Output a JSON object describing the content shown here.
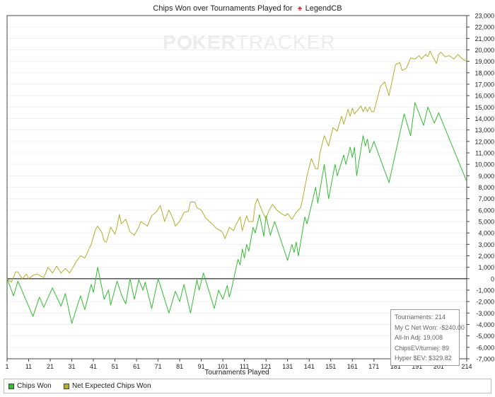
{
  "title": {
    "prefix": "Chips Won over Tournaments Played for",
    "player": "LegendCB"
  },
  "watermark": {
    "part1": "P",
    "part2": "KER",
    "part3": "TRACKER"
  },
  "stats_box": {
    "tournaments": "Tournaments: 214",
    "net_won": "My C Net Won: -$240.00",
    "allin_adj": "All-In Adj: 19,008",
    "chips_ev": "ChipsEV/turniej: 89",
    "hyper_sev": "Hyper $EV: $329.82"
  },
  "legend": {
    "chips_won": "Chips Won",
    "net_expected": "Net Expected Chips Won"
  },
  "colors": {
    "chips_won": "#33bb33",
    "net_expected": "#b3ae2e",
    "zero_line": "#000000",
    "grid": "#f0f0f0",
    "axis": "#444444"
  },
  "chart_data": {
    "type": "line",
    "title": "Chips Won over Tournaments Played for LegendCB",
    "xlabel": "Tournaments Played",
    "ylabel": "",
    "xlim": [
      1,
      214
    ],
    "ylim": [
      -7000,
      23000
    ],
    "x_ticks": [
      1,
      11,
      21,
      31,
      41,
      51,
      61,
      71,
      81,
      91,
      101,
      111,
      121,
      131,
      141,
      151,
      161,
      171,
      181,
      191,
      201,
      214
    ],
    "y_ticks": [
      -7000,
      -6000,
      -5000,
      -4000,
      -3000,
      -2000,
      -1000,
      0,
      1000,
      2000,
      3000,
      4000,
      5000,
      6000,
      7000,
      8000,
      9000,
      10000,
      11000,
      12000,
      13000,
      14000,
      15000,
      16000,
      17000,
      18000,
      19000,
      20000,
      21000,
      22000,
      23000
    ],
    "legend_position": "bottom",
    "series": [
      {
        "name": "Chips Won",
        "points": [
          [
            1,
            0
          ],
          [
            4,
            -1500
          ],
          [
            6,
            -200
          ],
          [
            13,
            -3300
          ],
          [
            16,
            -1600
          ],
          [
            18,
            -2500
          ],
          [
            22,
            -800
          ],
          [
            26,
            -2400
          ],
          [
            28,
            -1300
          ],
          [
            31,
            -3900
          ],
          [
            35,
            -1500
          ],
          [
            37,
            -2700
          ],
          [
            40,
            -500
          ],
          [
            41,
            -1200
          ],
          [
            43,
            1000
          ],
          [
            46,
            -1800
          ],
          [
            48,
            -1000
          ],
          [
            49,
            -2300
          ],
          [
            52,
            -200
          ],
          [
            54,
            -1400
          ],
          [
            56,
            -2200
          ],
          [
            58,
            0
          ],
          [
            60,
            -1800
          ],
          [
            62,
            -100
          ],
          [
            64,
            -1000
          ],
          [
            65,
            -300
          ],
          [
            68,
            -2600
          ],
          [
            71,
            0
          ],
          [
            76,
            -3000
          ],
          [
            79,
            -1100
          ],
          [
            81,
            -2000
          ],
          [
            83,
            -500
          ],
          [
            86,
            -3000
          ],
          [
            89,
            -100
          ],
          [
            90,
            -1000
          ],
          [
            92,
            500
          ],
          [
            97,
            -2600
          ],
          [
            99,
            -1000
          ],
          [
            101,
            -1800
          ],
          [
            103,
            -600
          ],
          [
            104,
            -1600
          ],
          [
            105,
            -900
          ],
          [
            108,
            1700
          ],
          [
            109,
            1200
          ],
          [
            110,
            2600
          ],
          [
            111,
            1800
          ],
          [
            112,
            3000
          ],
          [
            113,
            2400
          ],
          [
            115,
            4500
          ],
          [
            116,
            4000
          ],
          [
            118,
            5600
          ],
          [
            120,
            3700
          ],
          [
            121,
            5500
          ],
          [
            123,
            3800
          ],
          [
            125,
            5000
          ],
          [
            131,
            1600
          ],
          [
            133,
            3000
          ],
          [
            134,
            2300
          ],
          [
            135,
            3200
          ],
          [
            136,
            2000
          ],
          [
            139,
            5400
          ],
          [
            140,
            4800
          ],
          [
            144,
            8000
          ],
          [
            145,
            6600
          ],
          [
            148,
            10000
          ],
          [
            150,
            7000
          ],
          [
            153,
            10000
          ],
          [
            154,
            9000
          ],
          [
            157,
            10800
          ],
          [
            158,
            10000
          ],
          [
            160,
            11500
          ],
          [
            161,
            10600
          ],
          [
            162,
            11500
          ],
          [
            163,
            9000
          ],
          [
            166,
            12500
          ],
          [
            167,
            11600
          ],
          [
            168,
            12200
          ],
          [
            169,
            11000
          ],
          [
            171,
            12000
          ],
          [
            178,
            8400
          ],
          [
            185,
            14400
          ],
          [
            188,
            12500
          ],
          [
            190,
            15400
          ],
          [
            194,
            13400
          ],
          [
            196,
            15000
          ],
          [
            199,
            13600
          ],
          [
            201,
            14500
          ],
          [
            214,
            8500
          ]
        ]
      },
      {
        "name": "Net Expected Chips Won",
        "points": [
          [
            1,
            0
          ],
          [
            3,
            -300
          ],
          [
            5,
            600
          ],
          [
            6,
            600
          ],
          [
            8,
            0
          ],
          [
            10,
            400
          ],
          [
            11,
            0
          ],
          [
            13,
            300
          ],
          [
            15,
            400
          ],
          [
            18,
            100
          ],
          [
            20,
            1000
          ],
          [
            22,
            500
          ],
          [
            24,
            1100
          ],
          [
            26,
            500
          ],
          [
            28,
            900
          ],
          [
            30,
            500
          ],
          [
            31,
            800
          ],
          [
            33,
            1500
          ],
          [
            35,
            2000
          ],
          [
            37,
            1800
          ],
          [
            39,
            2600
          ],
          [
            40,
            3000
          ],
          [
            42,
            4300
          ],
          [
            43,
            4600
          ],
          [
            45,
            4000
          ],
          [
            46,
            3300
          ],
          [
            47,
            3200
          ],
          [
            49,
            4500
          ],
          [
            51,
            3900
          ],
          [
            52,
            4600
          ],
          [
            53,
            5600
          ],
          [
            54,
            4800
          ],
          [
            56,
            5200
          ],
          [
            58,
            4100
          ],
          [
            60,
            3800
          ],
          [
            62,
            4500
          ],
          [
            63,
            5000
          ],
          [
            66,
            4600
          ],
          [
            68,
            5500
          ],
          [
            70,
            5800
          ],
          [
            72,
            6400
          ],
          [
            74,
            5000
          ],
          [
            76,
            6000
          ],
          [
            78,
            5200
          ],
          [
            79,
            4600
          ],
          [
            81,
            5000
          ],
          [
            83,
            5800
          ],
          [
            85,
            5900
          ],
          [
            86,
            6700
          ],
          [
            88,
            6700
          ],
          [
            89,
            6200
          ],
          [
            91,
            6000
          ],
          [
            93,
            5300
          ],
          [
            96,
            4800
          ],
          [
            98,
            4400
          ],
          [
            100,
            4200
          ],
          [
            101,
            4000
          ],
          [
            102,
            3500
          ],
          [
            104,
            4500
          ],
          [
            106,
            4200
          ],
          [
            107,
            4700
          ],
          [
            109,
            5400
          ],
          [
            110,
            4200
          ],
          [
            112,
            5500
          ],
          [
            113,
            5000
          ],
          [
            115,
            5000
          ],
          [
            116,
            6500
          ],
          [
            117,
            7000
          ],
          [
            119,
            6000
          ],
          [
            121,
            5200
          ],
          [
            122,
            5800
          ],
          [
            124,
            6500
          ],
          [
            126,
            6000
          ],
          [
            128,
            5700
          ],
          [
            130,
            5500
          ],
          [
            131,
            5700
          ],
          [
            133,
            5200
          ],
          [
            135,
            5800
          ],
          [
            137,
            6200
          ],
          [
            138,
            7000
          ],
          [
            140,
            9000
          ],
          [
            142,
            10500
          ],
          [
            144,
            9600
          ],
          [
            145,
            9600
          ],
          [
            146,
            11000
          ],
          [
            148,
            12500
          ],
          [
            150,
            11600
          ],
          [
            152,
            13200
          ],
          [
            154,
            12900
          ],
          [
            156,
            14200
          ],
          [
            157,
            13500
          ],
          [
            159,
            14800
          ],
          [
            160,
            14200
          ],
          [
            161,
            14900
          ],
          [
            162,
            14400
          ],
          [
            165,
            15100
          ],
          [
            166,
            14600
          ],
          [
            167,
            15000
          ],
          [
            168,
            14600
          ],
          [
            169,
            15000
          ],
          [
            170,
            14600
          ],
          [
            171,
            14600
          ],
          [
            174,
            16800
          ],
          [
            176,
            17200
          ],
          [
            178,
            16000
          ],
          [
            181,
            18700
          ],
          [
            183,
            18900
          ],
          [
            184,
            18200
          ],
          [
            186,
            18400
          ],
          [
            188,
            19300
          ],
          [
            190,
            19200
          ],
          [
            192,
            19500
          ],
          [
            193,
            19200
          ],
          [
            195,
            19600
          ],
          [
            196,
            19400
          ],
          [
            197,
            19900
          ],
          [
            198,
            19500
          ],
          [
            200,
            18800
          ],
          [
            201,
            19600
          ],
          [
            202,
            19800
          ],
          [
            204,
            19400
          ],
          [
            206,
            19500
          ],
          [
            208,
            19200
          ],
          [
            210,
            19600
          ],
          [
            212,
            19200
          ],
          [
            214,
            19000
          ]
        ]
      }
    ]
  }
}
